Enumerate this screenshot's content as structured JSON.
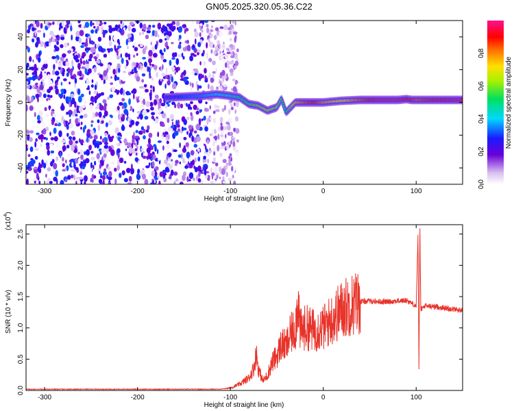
{
  "figure_title": "GN05.2025.320.05.36.C22",
  "chart_data": [
    {
      "type": "heatmap",
      "title": "GN05.2025.320.05.36.C22",
      "xlabel": "Height of straight line (km)",
      "ylabel": "Frequency (Hz)",
      "xlim": [
        -320,
        150
      ],
      "ylim": [
        -50,
        50
      ],
      "x_ticks": [
        -300,
        -200,
        -100,
        0,
        100
      ],
      "y_ticks": [
        40,
        20,
        0,
        -20,
        -40
      ],
      "colorbar": {
        "label": "Normalized spectral amplitude",
        "range": [
          0,
          1
        ],
        "ticks": [
          "0.0",
          "0.2",
          "0.4",
          "0.6",
          "0.8"
        ],
        "colormap": "white-purple-blue-cyan-green-yellow-red-magenta"
      },
      "noise_region_x": [
        -320,
        -100
      ],
      "ridge": {
        "x": [
          -170,
          -150,
          -130,
          -115,
          -100,
          -90,
          -80,
          -70,
          -60,
          -50,
          -45,
          -40,
          -30,
          -20,
          -10,
          0,
          20,
          40,
          60,
          80,
          90,
          95,
          100,
          120,
          150
        ],
        "freq": [
          3,
          3.5,
          4,
          5,
          4,
          3,
          -1,
          -2,
          -5,
          -3,
          2,
          -6,
          0,
          0,
          0,
          0,
          1,
          1.5,
          1.5,
          1.5,
          2,
          1.5,
          1.5,
          1.5,
          1.5
        ],
        "amplitude": [
          0.2,
          0.3,
          0.35,
          0.4,
          0.45,
          0.5,
          0.55,
          0.6,
          0.65,
          0.6,
          0.55,
          0.5,
          0.75,
          0.85,
          0.9,
          0.8,
          0.7,
          0.85,
          0.95,
          0.95,
          0.9,
          0.9,
          0.85,
          0.9,
          0.95
        ]
      }
    },
    {
      "type": "line",
      "xlabel": "Height of straight line (km)",
      "ylabel": "SNR (10 * v/v)",
      "scale_label": "(x10",
      "scale_exp": "4",
      "scale_close": ")",
      "xlim": [
        -320,
        150
      ],
      "ylim": [
        0,
        2.65
      ],
      "x_ticks": [
        -300,
        -200,
        -100,
        0,
        100
      ],
      "y_ticks": [
        "0.0",
        "0.5",
        "1.0",
        "1.5",
        "2.0",
        "2.5"
      ],
      "line_color": "#e8332a",
      "series": [
        {
          "x": [
            -320,
            -200,
            -110,
            -100,
            -90,
            -80,
            -75,
            -72,
            -70,
            -65,
            -60,
            -55,
            -50,
            -45,
            -40,
            -35,
            -30,
            -27,
            -25,
            -20,
            -15,
            -10,
            -5,
            0,
            10,
            20,
            30,
            40,
            50,
            60,
            70,
            80,
            90,
            95,
            100,
            102,
            103,
            104,
            105,
            110,
            120,
            130,
            140,
            150
          ],
          "y": [
            0.02,
            0.02,
            0.02,
            0.04,
            0.1,
            0.2,
            0.35,
            0.6,
            0.35,
            0.15,
            0.25,
            0.45,
            0.55,
            0.75,
            0.7,
            0.9,
            1.0,
            1.5,
            0.95,
            1.0,
            1.0,
            0.95,
            1.0,
            1.0,
            1.15,
            1.3,
            1.38,
            1.42,
            1.43,
            1.42,
            1.42,
            1.43,
            1.44,
            1.4,
            1.35,
            2.45,
            0.3,
            2.6,
            1.3,
            1.35,
            1.34,
            1.32,
            1.3,
            1.28
          ]
        }
      ]
    }
  ]
}
